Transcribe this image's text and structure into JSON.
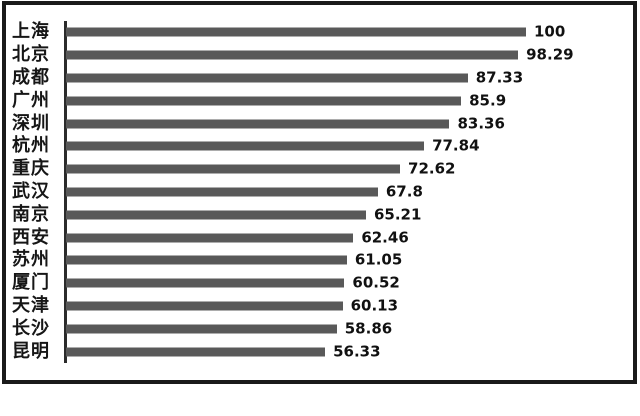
{
  "chart_data": {
    "type": "bar",
    "orientation": "horizontal",
    "title": "",
    "categories": [
      "上海",
      "北京",
      "成都",
      "广州",
      "深圳",
      "杭州",
      "重庆",
      "武汉",
      "南京",
      "西安",
      "苏州",
      "厦门",
      "天津",
      "长沙",
      "昆明"
    ],
    "values": [
      100,
      98.29,
      87.33,
      85.9,
      83.36,
      77.84,
      72.62,
      67.8,
      65.21,
      62.46,
      61.05,
      60.52,
      60.13,
      58.86,
      56.33
    ],
    "value_labels": [
      "100",
      "98.29",
      "87.33",
      "85.9",
      "83.36",
      "77.84",
      "72.62",
      "67.8",
      "65.21",
      "62.46",
      "61.05",
      "60.52",
      "60.13",
      "58.86",
      "56.33"
    ],
    "xlim": [
      0,
      100
    ],
    "sort_order": "descending",
    "grid": false,
    "legend": "none",
    "xlabel": "",
    "ylabel": "",
    "bar_color": "#595959",
    "axis_color": "#2b2b2b",
    "frame_color": "#1a1a1a",
    "category_label_color": "#161616",
    "value_label_color": "#111111",
    "background": "#ffffff"
  }
}
